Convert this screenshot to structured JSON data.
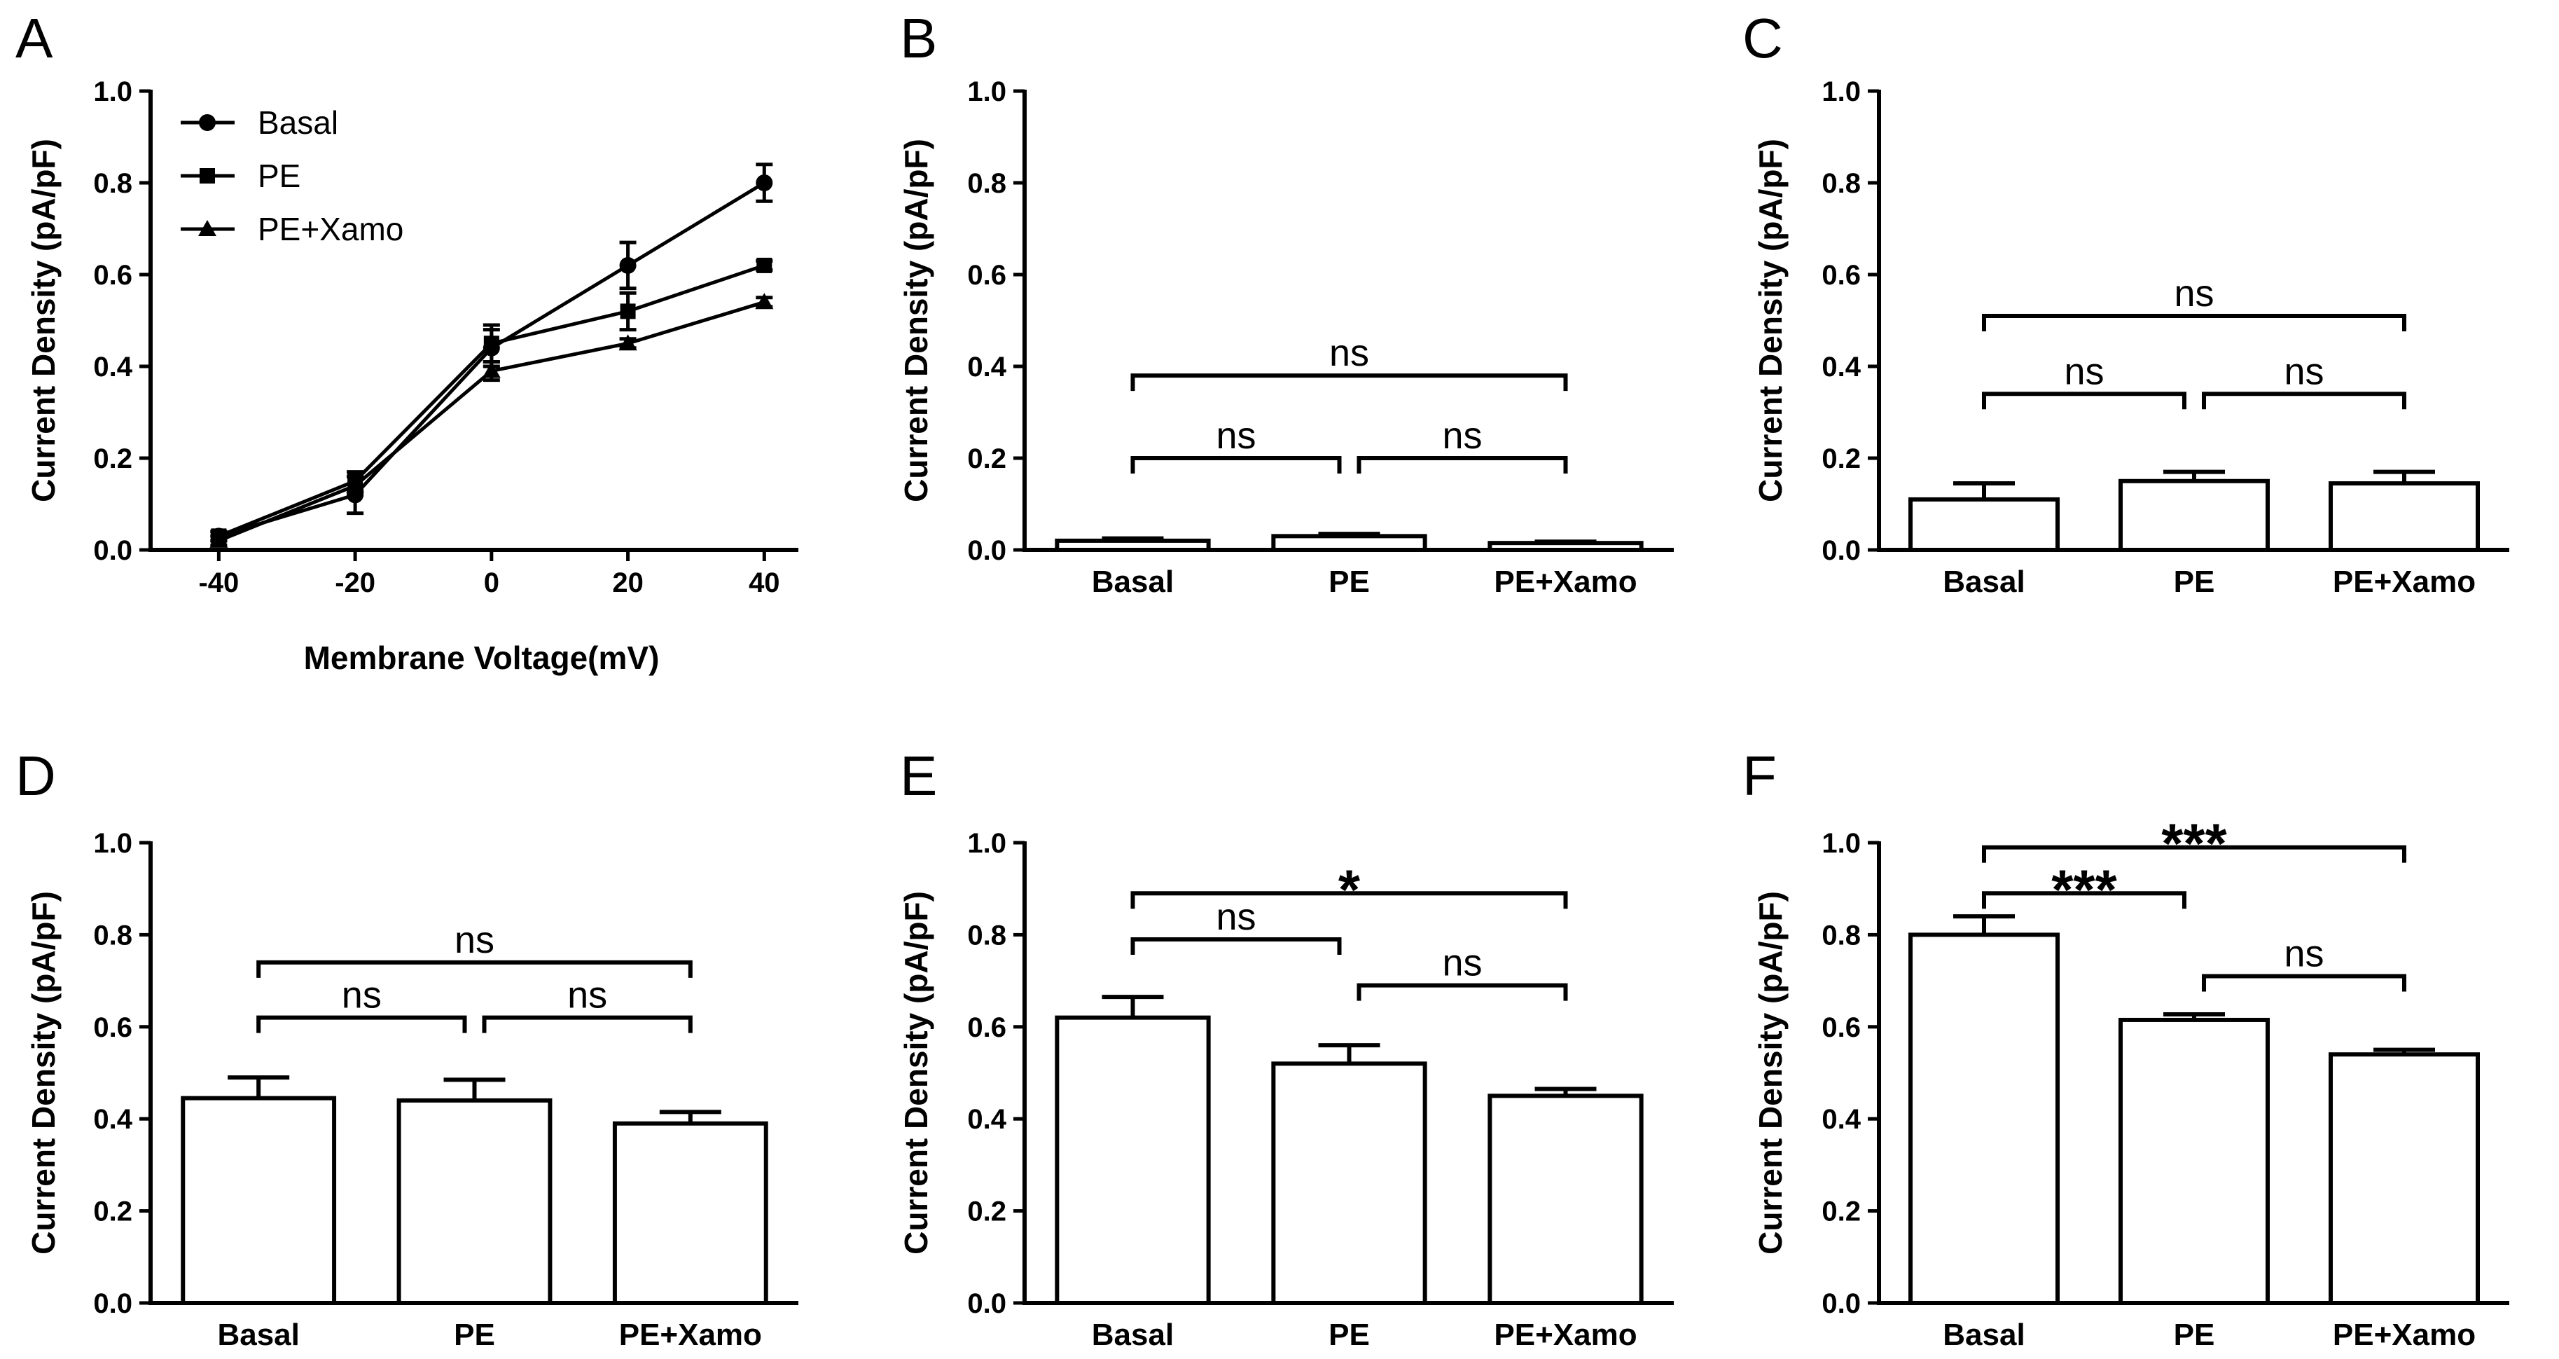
{
  "figure": {
    "chart_data": [
      {
        "panel": "A",
        "type": "line",
        "xlabel": "Membrane Voltage(mV)",
        "ylabel": "Current Density (pA/pF)",
        "x": [
          -40,
          -20,
          0,
          20,
          40
        ],
        "x_tick_labels": [
          "-40",
          "-20",
          "0",
          "20",
          "40"
        ],
        "xlim": [
          -50,
          45
        ],
        "ylim": [
          0,
          1
        ],
        "y_ticks": [
          "0.0",
          "0.2",
          "0.4",
          "0.6",
          "0.8",
          "1.0"
        ],
        "legend_position": "top-left",
        "series": [
          {
            "name": "Basal",
            "marker": "circle",
            "values": [
              0.03,
              0.12,
              0.44,
              0.62,
              0.8
            ],
            "errors": [
              0.01,
              0.04,
              0.04,
              0.05,
              0.04
            ]
          },
          {
            "name": "PE",
            "marker": "square",
            "values": [
              0.03,
              0.15,
              0.45,
              0.52,
              0.62
            ],
            "errors": [
              0.01,
              0.02,
              0.04,
              0.04,
              0.01
            ]
          },
          {
            "name": "PE+Xamo",
            "marker": "triangle",
            "values": [
              0.02,
              0.14,
              0.39,
              0.45,
              0.54
            ],
            "errors": [
              0.01,
              0.02,
              0.02,
              0.01,
              0.01
            ]
          }
        ]
      },
      {
        "panel": "B",
        "type": "bar",
        "ylabel": "Current Density (pA/pF)",
        "categories": [
          "Basal",
          "PE",
          "PE+Xamo"
        ],
        "values": [
          0.02,
          0.03,
          0.015
        ],
        "errors": [
          0.005,
          0.005,
          0.003
        ],
        "ylim": [
          0,
          1
        ],
        "y_ticks": [
          "0.0",
          "0.2",
          "0.4",
          "0.6",
          "0.8",
          "1.0"
        ],
        "comparisons": [
          {
            "from": 0,
            "to": 1,
            "level": 0.2,
            "label": "ns"
          },
          {
            "from": 1,
            "to": 2,
            "level": 0.2,
            "label": "ns"
          },
          {
            "from": 0,
            "to": 2,
            "level": 0.38,
            "label": "ns"
          }
        ]
      },
      {
        "panel": "C",
        "type": "bar",
        "ylabel": "Current Density (pA/pF)",
        "categories": [
          "Basal",
          "PE",
          "PE+Xamo"
        ],
        "values": [
          0.11,
          0.15,
          0.145
        ],
        "errors": [
          0.035,
          0.02,
          0.025
        ],
        "ylim": [
          0,
          1
        ],
        "y_ticks": [
          "0.0",
          "0.2",
          "0.4",
          "0.6",
          "0.8",
          "1.0"
        ],
        "comparisons": [
          {
            "from": 0,
            "to": 1,
            "level": 0.34,
            "label": "ns"
          },
          {
            "from": 1,
            "to": 2,
            "level": 0.34,
            "label": "ns"
          },
          {
            "from": 0,
            "to": 2,
            "level": 0.51,
            "label": "ns"
          }
        ]
      },
      {
        "panel": "D",
        "type": "bar",
        "ylabel": "Current Density (pA/pF)",
        "categories": [
          "Basal",
          "PE",
          "PE+Xamo"
        ],
        "values": [
          0.445,
          0.44,
          0.39
        ],
        "errors": [
          0.045,
          0.045,
          0.025
        ],
        "ylim": [
          0,
          1
        ],
        "y_ticks": [
          "0.0",
          "0.2",
          "0.4",
          "0.6",
          "0.8",
          "1.0"
        ],
        "comparisons": [
          {
            "from": 0,
            "to": 1,
            "level": 0.62,
            "label": "ns"
          },
          {
            "from": 1,
            "to": 2,
            "level": 0.62,
            "label": "ns"
          },
          {
            "from": 0,
            "to": 2,
            "level": 0.74,
            "label": "ns"
          }
        ]
      },
      {
        "panel": "E",
        "type": "bar",
        "ylabel": "Current Density (pA/pF)",
        "categories": [
          "Basal",
          "PE",
          "PE+Xamo"
        ],
        "values": [
          0.62,
          0.52,
          0.45
        ],
        "errors": [
          0.045,
          0.04,
          0.015
        ],
        "ylim": [
          0,
          1
        ],
        "y_ticks": [
          "0.0",
          "0.2",
          "0.4",
          "0.6",
          "0.8",
          "1.0"
        ],
        "comparisons": [
          {
            "from": 0,
            "to": 1,
            "level": 0.79,
            "label": "ns"
          },
          {
            "from": 1,
            "to": 2,
            "level": 0.69,
            "label": "ns"
          },
          {
            "from": 0,
            "to": 2,
            "level": 0.89,
            "label": "*"
          }
        ]
      },
      {
        "panel": "F",
        "type": "bar",
        "ylabel": "Current Density (pA/pF)",
        "categories": [
          "Basal",
          "PE",
          "PE+Xamo"
        ],
        "values": [
          0.8,
          0.615,
          0.54
        ],
        "errors": [
          0.04,
          0.012,
          0.01
        ],
        "ylim": [
          0,
          1
        ],
        "y_ticks": [
          "0.0",
          "0.2",
          "0.4",
          "0.6",
          "0.8",
          "1.0"
        ],
        "comparisons": [
          {
            "from": 0,
            "to": 1,
            "level": 0.89,
            "label": "***"
          },
          {
            "from": 1,
            "to": 2,
            "level": 0.71,
            "label": "ns"
          },
          {
            "from": 0,
            "to": 2,
            "level": 0.99,
            "label": "***"
          }
        ]
      }
    ]
  }
}
